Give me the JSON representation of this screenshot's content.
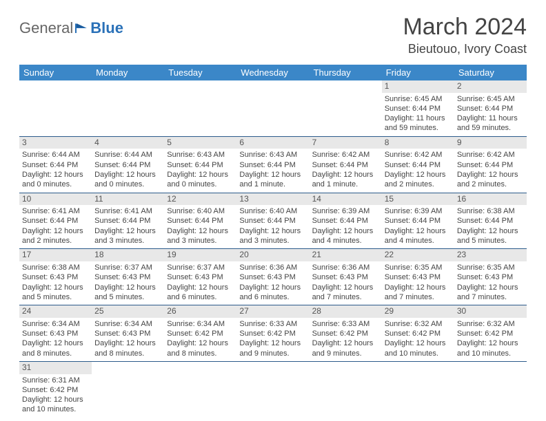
{
  "logo": {
    "text1": "General",
    "text2": "Blue"
  },
  "header": {
    "title": "March 2024",
    "location": "Bieutouo, Ivory Coast"
  },
  "colors": {
    "header_bg": "#3b87c8",
    "header_text": "#ffffff",
    "daynum_bg": "#e8e8e8",
    "border": "#2a5a8a",
    "logo_accent": "#2a71b8"
  },
  "weekdays": [
    "Sunday",
    "Monday",
    "Tuesday",
    "Wednesday",
    "Thursday",
    "Friday",
    "Saturday"
  ],
  "weeks": [
    [
      null,
      null,
      null,
      null,
      null,
      {
        "n": "1",
        "sr": "Sunrise: 6:45 AM",
        "ss": "Sunset: 6:44 PM",
        "dl": "Daylight: 11 hours and 59 minutes."
      },
      {
        "n": "2",
        "sr": "Sunrise: 6:45 AM",
        "ss": "Sunset: 6:44 PM",
        "dl": "Daylight: 11 hours and 59 minutes."
      }
    ],
    [
      {
        "n": "3",
        "sr": "Sunrise: 6:44 AM",
        "ss": "Sunset: 6:44 PM",
        "dl": "Daylight: 12 hours and 0 minutes."
      },
      {
        "n": "4",
        "sr": "Sunrise: 6:44 AM",
        "ss": "Sunset: 6:44 PM",
        "dl": "Daylight: 12 hours and 0 minutes."
      },
      {
        "n": "5",
        "sr": "Sunrise: 6:43 AM",
        "ss": "Sunset: 6:44 PM",
        "dl": "Daylight: 12 hours and 0 minutes."
      },
      {
        "n": "6",
        "sr": "Sunrise: 6:43 AM",
        "ss": "Sunset: 6:44 PM",
        "dl": "Daylight: 12 hours and 1 minute."
      },
      {
        "n": "7",
        "sr": "Sunrise: 6:42 AM",
        "ss": "Sunset: 6:44 PM",
        "dl": "Daylight: 12 hours and 1 minute."
      },
      {
        "n": "8",
        "sr": "Sunrise: 6:42 AM",
        "ss": "Sunset: 6:44 PM",
        "dl": "Daylight: 12 hours and 2 minutes."
      },
      {
        "n": "9",
        "sr": "Sunrise: 6:42 AM",
        "ss": "Sunset: 6:44 PM",
        "dl": "Daylight: 12 hours and 2 minutes."
      }
    ],
    [
      {
        "n": "10",
        "sr": "Sunrise: 6:41 AM",
        "ss": "Sunset: 6:44 PM",
        "dl": "Daylight: 12 hours and 2 minutes."
      },
      {
        "n": "11",
        "sr": "Sunrise: 6:41 AM",
        "ss": "Sunset: 6:44 PM",
        "dl": "Daylight: 12 hours and 3 minutes."
      },
      {
        "n": "12",
        "sr": "Sunrise: 6:40 AM",
        "ss": "Sunset: 6:44 PM",
        "dl": "Daylight: 12 hours and 3 minutes."
      },
      {
        "n": "13",
        "sr": "Sunrise: 6:40 AM",
        "ss": "Sunset: 6:44 PM",
        "dl": "Daylight: 12 hours and 3 minutes."
      },
      {
        "n": "14",
        "sr": "Sunrise: 6:39 AM",
        "ss": "Sunset: 6:44 PM",
        "dl": "Daylight: 12 hours and 4 minutes."
      },
      {
        "n": "15",
        "sr": "Sunrise: 6:39 AM",
        "ss": "Sunset: 6:44 PM",
        "dl": "Daylight: 12 hours and 4 minutes."
      },
      {
        "n": "16",
        "sr": "Sunrise: 6:38 AM",
        "ss": "Sunset: 6:44 PM",
        "dl": "Daylight: 12 hours and 5 minutes."
      }
    ],
    [
      {
        "n": "17",
        "sr": "Sunrise: 6:38 AM",
        "ss": "Sunset: 6:43 PM",
        "dl": "Daylight: 12 hours and 5 minutes."
      },
      {
        "n": "18",
        "sr": "Sunrise: 6:37 AM",
        "ss": "Sunset: 6:43 PM",
        "dl": "Daylight: 12 hours and 5 minutes."
      },
      {
        "n": "19",
        "sr": "Sunrise: 6:37 AM",
        "ss": "Sunset: 6:43 PM",
        "dl": "Daylight: 12 hours and 6 minutes."
      },
      {
        "n": "20",
        "sr": "Sunrise: 6:36 AM",
        "ss": "Sunset: 6:43 PM",
        "dl": "Daylight: 12 hours and 6 minutes."
      },
      {
        "n": "21",
        "sr": "Sunrise: 6:36 AM",
        "ss": "Sunset: 6:43 PM",
        "dl": "Daylight: 12 hours and 7 minutes."
      },
      {
        "n": "22",
        "sr": "Sunrise: 6:35 AM",
        "ss": "Sunset: 6:43 PM",
        "dl": "Daylight: 12 hours and 7 minutes."
      },
      {
        "n": "23",
        "sr": "Sunrise: 6:35 AM",
        "ss": "Sunset: 6:43 PM",
        "dl": "Daylight: 12 hours and 7 minutes."
      }
    ],
    [
      {
        "n": "24",
        "sr": "Sunrise: 6:34 AM",
        "ss": "Sunset: 6:43 PM",
        "dl": "Daylight: 12 hours and 8 minutes."
      },
      {
        "n": "25",
        "sr": "Sunrise: 6:34 AM",
        "ss": "Sunset: 6:43 PM",
        "dl": "Daylight: 12 hours and 8 minutes."
      },
      {
        "n": "26",
        "sr": "Sunrise: 6:34 AM",
        "ss": "Sunset: 6:42 PM",
        "dl": "Daylight: 12 hours and 8 minutes."
      },
      {
        "n": "27",
        "sr": "Sunrise: 6:33 AM",
        "ss": "Sunset: 6:42 PM",
        "dl": "Daylight: 12 hours and 9 minutes."
      },
      {
        "n": "28",
        "sr": "Sunrise: 6:33 AM",
        "ss": "Sunset: 6:42 PM",
        "dl": "Daylight: 12 hours and 9 minutes."
      },
      {
        "n": "29",
        "sr": "Sunrise: 6:32 AM",
        "ss": "Sunset: 6:42 PM",
        "dl": "Daylight: 12 hours and 10 minutes."
      },
      {
        "n": "30",
        "sr": "Sunrise: 6:32 AM",
        "ss": "Sunset: 6:42 PM",
        "dl": "Daylight: 12 hours and 10 minutes."
      }
    ],
    [
      {
        "n": "31",
        "sr": "Sunrise: 6:31 AM",
        "ss": "Sunset: 6:42 PM",
        "dl": "Daylight: 12 hours and 10 minutes."
      },
      null,
      null,
      null,
      null,
      null,
      null
    ]
  ]
}
